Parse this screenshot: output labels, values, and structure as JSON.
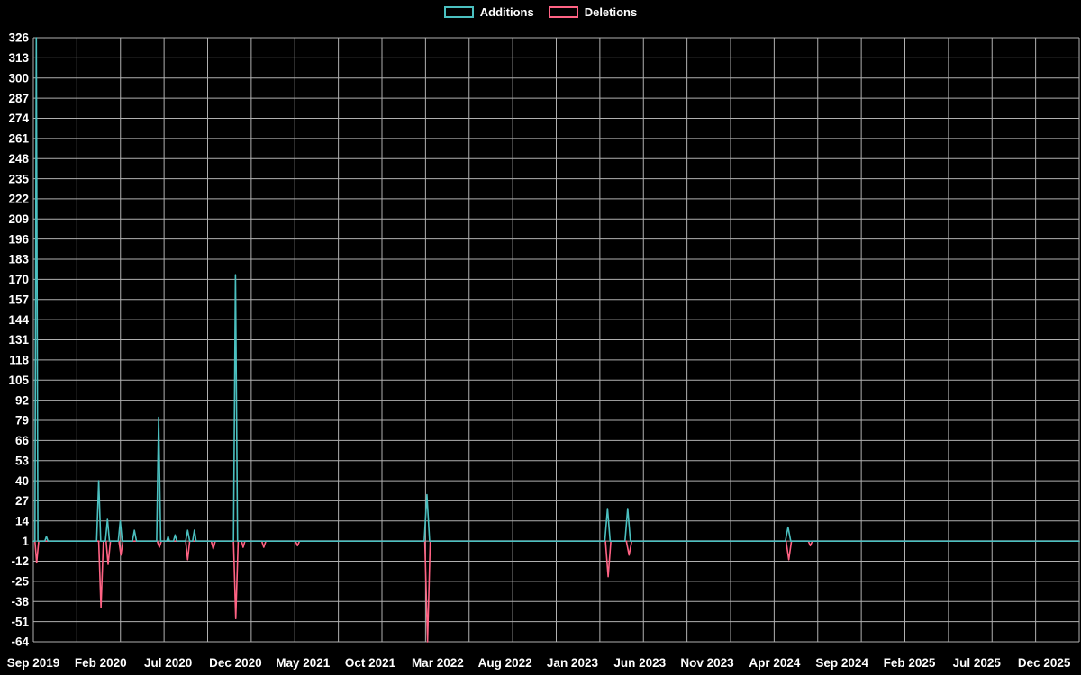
{
  "legend": {
    "items": [
      {
        "label": "Additions",
        "color": "#4bc0c0"
      },
      {
        "label": "Deletions",
        "color": "#ff6384"
      }
    ]
  },
  "chart_data": {
    "type": "line",
    "title": "",
    "legend_position": "top",
    "background_color": "#000000",
    "text_color": "#ffffff",
    "grid": {
      "color": "#b0b0b0",
      "vertical_divisions": 24,
      "visible": true
    },
    "x_axis": {
      "tick_labels": [
        "Sep 2019",
        "Feb 2020",
        "Jul 2020",
        "Dec 2020",
        "May 2021",
        "Oct 2021",
        "Mar 2022",
        "Aug 2022",
        "Jan 2023",
        "Jun 2023",
        "Nov 2023",
        "Apr 2024",
        "Sep 2024",
        "Feb 2025",
        "Jul 2025",
        "Dec 2025"
      ],
      "tick_month_offsets": [
        0,
        5,
        10,
        15,
        20,
        25,
        30,
        35,
        40,
        45,
        50,
        55,
        60,
        65,
        70,
        75
      ],
      "months_span": 77.6
    },
    "y_axis": {
      "min": -64,
      "max": 326,
      "tick_step": 13,
      "baseline": 1,
      "tick_labels": [
        326,
        313,
        300,
        287,
        274,
        261,
        248,
        235,
        222,
        209,
        196,
        183,
        170,
        157,
        144,
        131,
        118,
        105,
        92,
        79,
        66,
        53,
        40,
        27,
        14,
        1,
        -12,
        -25,
        -38,
        -51,
        -64
      ]
    },
    "series": [
      {
        "name": "Additions",
        "color": "#4bc0c0",
        "points": [
          [
            0,
            1
          ],
          [
            0.12,
            1
          ],
          [
            0.22,
            326
          ],
          [
            0.34,
            1
          ],
          [
            0.85,
            1
          ],
          [
            0.97,
            4
          ],
          [
            1.09,
            1
          ],
          [
            4.7,
            1
          ],
          [
            4.85,
            40
          ],
          [
            5.0,
            1
          ],
          [
            5.35,
            1
          ],
          [
            5.5,
            15
          ],
          [
            5.65,
            1
          ],
          [
            6.3,
            1
          ],
          [
            6.45,
            14
          ],
          [
            6.6,
            1
          ],
          [
            7.35,
            1
          ],
          [
            7.5,
            8
          ],
          [
            7.65,
            1
          ],
          [
            9.15,
            1
          ],
          [
            9.3,
            81
          ],
          [
            9.45,
            1
          ],
          [
            9.9,
            1
          ],
          [
            10.0,
            4
          ],
          [
            10.1,
            1
          ],
          [
            10.4,
            1
          ],
          [
            10.52,
            5
          ],
          [
            10.64,
            1
          ],
          [
            11.3,
            1
          ],
          [
            11.45,
            8
          ],
          [
            11.6,
            1
          ],
          [
            11.82,
            1
          ],
          [
            11.95,
            8
          ],
          [
            12.08,
            1
          ],
          [
            14.85,
            1
          ],
          [
            15.0,
            173
          ],
          [
            15.15,
            1
          ],
          [
            29.0,
            1
          ],
          [
            29.2,
            31
          ],
          [
            29.4,
            1
          ],
          [
            42.4,
            1
          ],
          [
            42.6,
            22
          ],
          [
            42.8,
            1
          ],
          [
            43.9,
            1
          ],
          [
            44.1,
            22
          ],
          [
            44.3,
            1
          ],
          [
            55.8,
            1
          ],
          [
            56.0,
            10
          ],
          [
            56.2,
            1
          ],
          [
            77.6,
            1
          ]
        ]
      },
      {
        "name": "Deletions",
        "color": "#ff6384",
        "points": [
          [
            0,
            1
          ],
          [
            0.12,
            1
          ],
          [
            0.25,
            -13
          ],
          [
            0.4,
            1
          ],
          [
            4.85,
            1
          ],
          [
            5.02,
            -42
          ],
          [
            5.2,
            1
          ],
          [
            5.4,
            1
          ],
          [
            5.55,
            -14
          ],
          [
            5.72,
            1
          ],
          [
            6.35,
            1
          ],
          [
            6.5,
            -8
          ],
          [
            6.65,
            1
          ],
          [
            9.2,
            1
          ],
          [
            9.35,
            -3
          ],
          [
            9.5,
            1
          ],
          [
            11.3,
            1
          ],
          [
            11.45,
            -11
          ],
          [
            11.6,
            1
          ],
          [
            13.2,
            1
          ],
          [
            13.35,
            -4
          ],
          [
            13.5,
            1
          ],
          [
            14.85,
            1
          ],
          [
            15.02,
            -49
          ],
          [
            15.2,
            1
          ],
          [
            15.45,
            1
          ],
          [
            15.57,
            -3
          ],
          [
            15.7,
            1
          ],
          [
            16.95,
            1
          ],
          [
            17.1,
            -3
          ],
          [
            17.25,
            1
          ],
          [
            19.45,
            1
          ],
          [
            19.6,
            -2
          ],
          [
            19.75,
            1
          ],
          [
            29.05,
            1
          ],
          [
            29.25,
            -64
          ],
          [
            29.45,
            1
          ],
          [
            42.45,
            1
          ],
          [
            42.65,
            -22
          ],
          [
            42.85,
            1
          ],
          [
            44.0,
            1
          ],
          [
            44.2,
            -8
          ],
          [
            44.4,
            1
          ],
          [
            55.85,
            1
          ],
          [
            56.05,
            -11
          ],
          [
            56.25,
            1
          ],
          [
            57.5,
            1
          ],
          [
            57.65,
            -2
          ],
          [
            57.8,
            1
          ],
          [
            77.6,
            1
          ]
        ]
      }
    ]
  }
}
